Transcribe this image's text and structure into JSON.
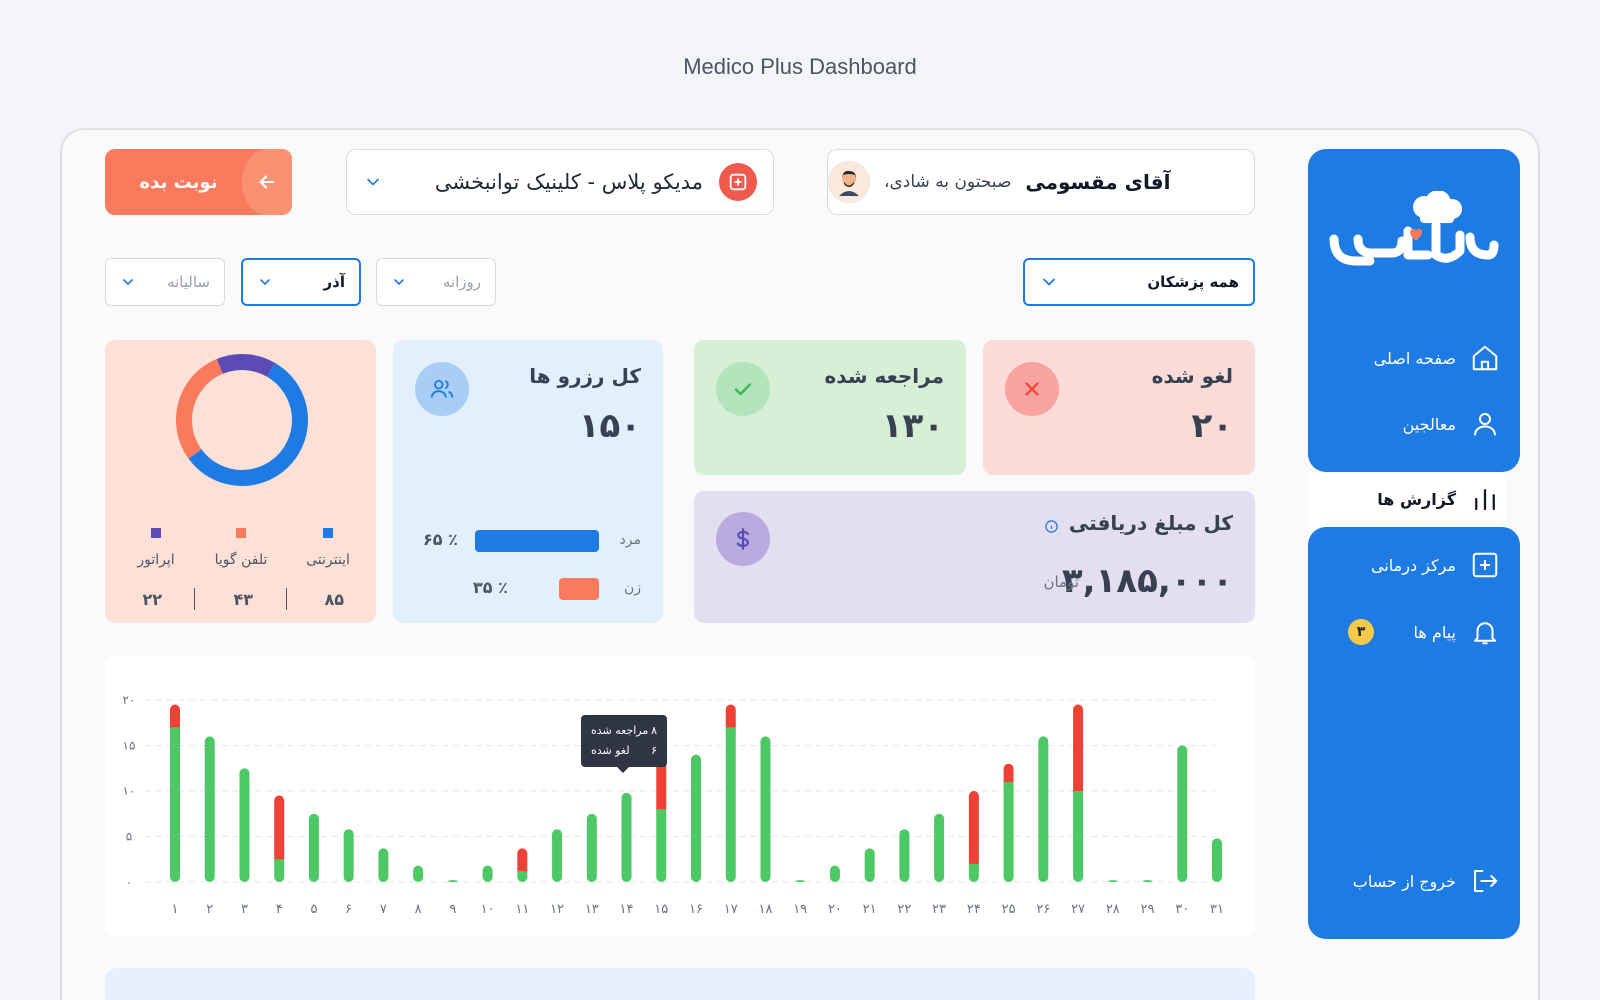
{
  "page_title": "Medico Plus Dashboard",
  "sidebar": {
    "logo_alt": "درمانکده",
    "items": [
      {
        "label": "صفحه اصلی",
        "icon": "home-icon",
        "active": false
      },
      {
        "label": "معالجین",
        "icon": "user-icon",
        "active": false
      },
      {
        "label": "گزارش ها",
        "icon": "chart-icon",
        "active": true
      },
      {
        "label": "مرکز درمانی",
        "icon": "plus-square-icon",
        "active": false
      },
      {
        "label": "پیام ها",
        "icon": "bell-icon",
        "active": false,
        "badge": "۳"
      }
    ],
    "logout_label": "خروج از حساب"
  },
  "header": {
    "greeting": "صبحتون به شادی،",
    "user_name": "آقای مقسومی",
    "clinic_name": "مدیکو پلاس - کلینیک توانبخشی",
    "book_button": "نوبت بده"
  },
  "filters": {
    "doctors": "همه پزشکان",
    "daily": "روزانه",
    "month": "آذر",
    "yearly": "سالیانه"
  },
  "stats": {
    "cancelled": {
      "label": "لغو شده",
      "value": "۲۰"
    },
    "visited": {
      "label": "مراجعه شده",
      "value": "۱۳۰"
    },
    "total_bookings": {
      "label": "کل رزرو ها",
      "value": "۱۵۰"
    },
    "revenue": {
      "label": "کل مبلغ دریافتی",
      "value": "۳,۱۸۵,۰۰۰",
      "unit": "تومان"
    }
  },
  "gender": {
    "male": {
      "label": "مرد",
      "percent_label": "۶۵ ٪",
      "percent": 65
    },
    "female": {
      "label": "زن",
      "percent_label": "۳۵ ٪",
      "percent": 35
    }
  },
  "channels": [
    {
      "label": "اینترنتی",
      "value": "۸۵",
      "count": 85,
      "color": "#1d7be3"
    },
    {
      "label": "تلفن گویا",
      "value": "۴۳",
      "count": 43,
      "color": "#f97a5c"
    },
    {
      "label": "اپراتور",
      "value": "۲۲",
      "count": 22,
      "color": "#5b4bb7"
    }
  ],
  "colors": {
    "primary": "#1d7be3",
    "visited": "#4cc964",
    "cancelled": "#ef4136"
  },
  "chart_data": {
    "type": "bar",
    "stacked": true,
    "categories": [
      "۱",
      "۲",
      "۳",
      "۴",
      "۵",
      "۶",
      "۷",
      "۸",
      "۹",
      "۱۰",
      "۱۱",
      "۱۲",
      "۱۳",
      "۱۴",
      "۱۵",
      "۱۶",
      "۱۷",
      "۱۸",
      "۱۹",
      "۲۰",
      "۲۱",
      "۲۲",
      "۲۳",
      "۲۴",
      "۲۵",
      "۲۶",
      "۲۷",
      "۲۸",
      "۲۹",
      "۳۰",
      "۳۱"
    ],
    "y_ticks": [
      "۰",
      "۵",
      "۱۰",
      "۱۵",
      "۲۰"
    ],
    "ylim": [
      0,
      20
    ],
    "series": [
      {
        "name": "مراجعه شده",
        "color": "#4cc964",
        "values": [
          17,
          16,
          12.5,
          2.5,
          7.5,
          5.8,
          3.7,
          1.8,
          0.2,
          1.8,
          1.2,
          5.8,
          7.5,
          9.8,
          8,
          14,
          17,
          16,
          0.2,
          1.8,
          3.7,
          5.8,
          7.5,
          2,
          11,
          16,
          10,
          0.2,
          0.2,
          15,
          4.8
        ]
      },
      {
        "name": "لغو شده",
        "color": "#ef4136",
        "values": [
          2.5,
          0,
          0,
          7,
          0,
          0,
          0,
          0,
          0,
          0,
          2.5,
          0,
          0,
          0,
          6,
          0,
          2.5,
          0,
          0,
          0,
          0,
          0,
          0,
          8,
          2,
          0,
          9.5,
          0,
          0,
          0,
          0
        ]
      }
    ],
    "tooltip": {
      "visited_value": "۸",
      "visited_label": "مراجعه شده",
      "cancelled_value": "۶",
      "cancelled_label": "لغو شده"
    },
    "grid": true,
    "legend": "none"
  }
}
